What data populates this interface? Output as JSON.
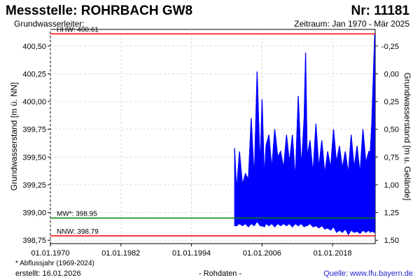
{
  "header": {
    "title": "Messstelle: ROHRBACH GW8",
    "number": "Nr: 11181",
    "aquifer": "Grundwasserleiter:",
    "period": "Zeitraum: Jan 1970 - Mär 2025"
  },
  "footer": {
    "footnote": "* Abflussjahr (1969-2024)",
    "created": "erstellt:  16.01.2026",
    "rawdata": "- Rohdaten -",
    "source": "Quelle: www.lfu.bayern.de"
  },
  "chart_data": {
    "type": "line",
    "ylabel": "Grundwasserstand [m ü. NN]",
    "y2label": "Grundwasserstand [m u. Gelände]",
    "x_ticks": [
      "01.01.1970",
      "01.01.1982",
      "01.01.1994",
      "01.01.2006",
      "01.01.2018"
    ],
    "xlim": [
      "1970-01-01",
      "2025-03-31"
    ],
    "ylim": [
      398.72,
      400.65
    ],
    "y_ticks": [
      "398,75",
      "399,00",
      "399,25",
      "399,50",
      "399,75",
      "400,00",
      "400,25",
      "400,50"
    ],
    "y_tick_values": [
      398.75,
      399.0,
      399.25,
      399.5,
      399.75,
      400.0,
      400.25,
      400.5
    ],
    "y2_ticks": [
      "-0,25",
      "0,00",
      "0,25",
      "0,50",
      "0,75",
      "1,00",
      "1,25",
      "1,50"
    ],
    "y2_tick_values": [
      -0.25,
      0.0,
      0.25,
      0.5,
      0.75,
      1.0,
      1.25,
      1.5
    ],
    "ground_level": 400.25,
    "grid": true,
    "reference_lines": [
      {
        "label": "HHW: 400.61",
        "value": 400.61,
        "color": "#ff0000"
      },
      {
        "label": "MW*: 398.95",
        "value": 398.95,
        "color": "#008000"
      },
      {
        "label": "NNW: 398.79",
        "value": 398.79,
        "color": "#ff0000"
      }
    ],
    "series": [
      {
        "color": "#0000ff",
        "x": [
          "2001-05-01",
          "2001-09-01",
          "2002-03-01",
          "2002-09-01",
          "2003-03-01",
          "2003-09-01",
          "2004-03-01",
          "2004-09-01",
          "2005-03-01",
          "2005-09-01",
          "2006-01-01",
          "2006-06-01",
          "2006-09-01",
          "2007-03-01",
          "2007-09-01",
          "2008-03-01",
          "2008-09-01",
          "2009-03-01",
          "2009-09-01",
          "2010-03-01",
          "2010-09-01",
          "2011-03-01",
          "2011-09-01",
          "2012-03-01",
          "2012-09-01",
          "2013-03-01",
          "2013-06-01",
          "2013-09-01",
          "2014-03-01",
          "2014-09-01",
          "2015-03-01",
          "2015-09-01",
          "2016-03-01",
          "2016-09-01",
          "2017-03-01",
          "2017-09-01",
          "2018-03-01",
          "2018-09-01",
          "2019-03-01",
          "2019-09-01",
          "2020-03-01",
          "2020-09-01",
          "2021-03-01",
          "2021-09-01",
          "2022-03-01",
          "2022-09-01",
          "2023-03-01",
          "2023-09-01",
          "2024-03-01",
          "2024-06-01",
          "2024-09-01",
          "2025-03-01"
        ],
        "high": [
          399.58,
          399.2,
          399.55,
          399.25,
          399.35,
          399.3,
          399.85,
          399.3,
          400.27,
          399.4,
          400.02,
          399.3,
          399.6,
          399.7,
          399.4,
          399.75,
          399.5,
          399.55,
          399.4,
          399.7,
          399.45,
          399.7,
          399.3,
          400.05,
          399.4,
          399.85,
          400.44,
          399.5,
          399.65,
          399.35,
          399.8,
          399.4,
          399.65,
          399.35,
          399.55,
          399.4,
          399.75,
          399.45,
          399.6,
          399.4,
          399.55,
          399.35,
          399.7,
          399.4,
          399.6,
          399.35,
          399.75,
          399.45,
          399.55,
          399.55,
          399.8,
          400.61
        ],
        "low": [
          398.88,
          398.88,
          398.9,
          398.88,
          398.9,
          398.87,
          398.9,
          398.88,
          398.92,
          398.88,
          398.88,
          398.87,
          398.9,
          398.88,
          398.9,
          398.87,
          398.9,
          398.88,
          398.9,
          398.88,
          398.9,
          398.87,
          398.9,
          398.88,
          398.9,
          398.87,
          398.88,
          398.88,
          398.9,
          398.87,
          398.88,
          398.86,
          398.88,
          398.85,
          398.86,
          398.84,
          398.87,
          398.82,
          398.84,
          398.82,
          398.85,
          398.8,
          398.84,
          398.82,
          398.83,
          398.81,
          398.84,
          398.82,
          398.84,
          398.82,
          398.83,
          398.82
        ]
      }
    ]
  }
}
